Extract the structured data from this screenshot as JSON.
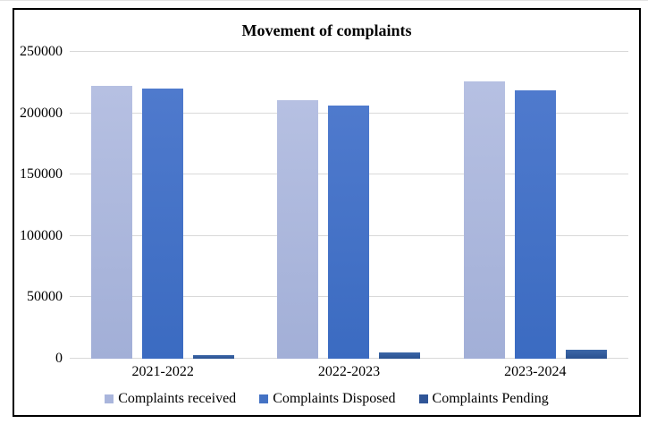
{
  "title": "Movement of complaints",
  "chart_data": {
    "type": "bar",
    "title": "Movement of complaints",
    "categories": [
      "2021-2022",
      "2022-2023",
      "2023-2024"
    ],
    "series": [
      {
        "name": "Complaints received",
        "values": [
          222000,
          211000,
          226000
        ],
        "legend_color": "#a9b5dc",
        "color_top": "#b6c0e2",
        "color_bottom": "#a2afd7"
      },
      {
        "name": "Complaints Disposed",
        "values": [
          220000,
          206000,
          219000
        ],
        "legend_color": "#4472c4",
        "color_top": "#4f7acd",
        "color_bottom": "#3b6bc1"
      },
      {
        "name": "Complaints Pending",
        "values": [
          3000,
          5000,
          7500
        ],
        "legend_color": "#2f5597",
        "color_top": "#3c67a8",
        "color_bottom": "#2a5190"
      }
    ],
    "ylim": [
      0,
      250000
    ],
    "ytick_step": 50000,
    "yticks": [
      "0",
      "50000",
      "100000",
      "150000",
      "200000",
      "250000"
    ],
    "grid": true,
    "gridline_color": "#d9d9d9",
    "legend_position": "bottom"
  }
}
